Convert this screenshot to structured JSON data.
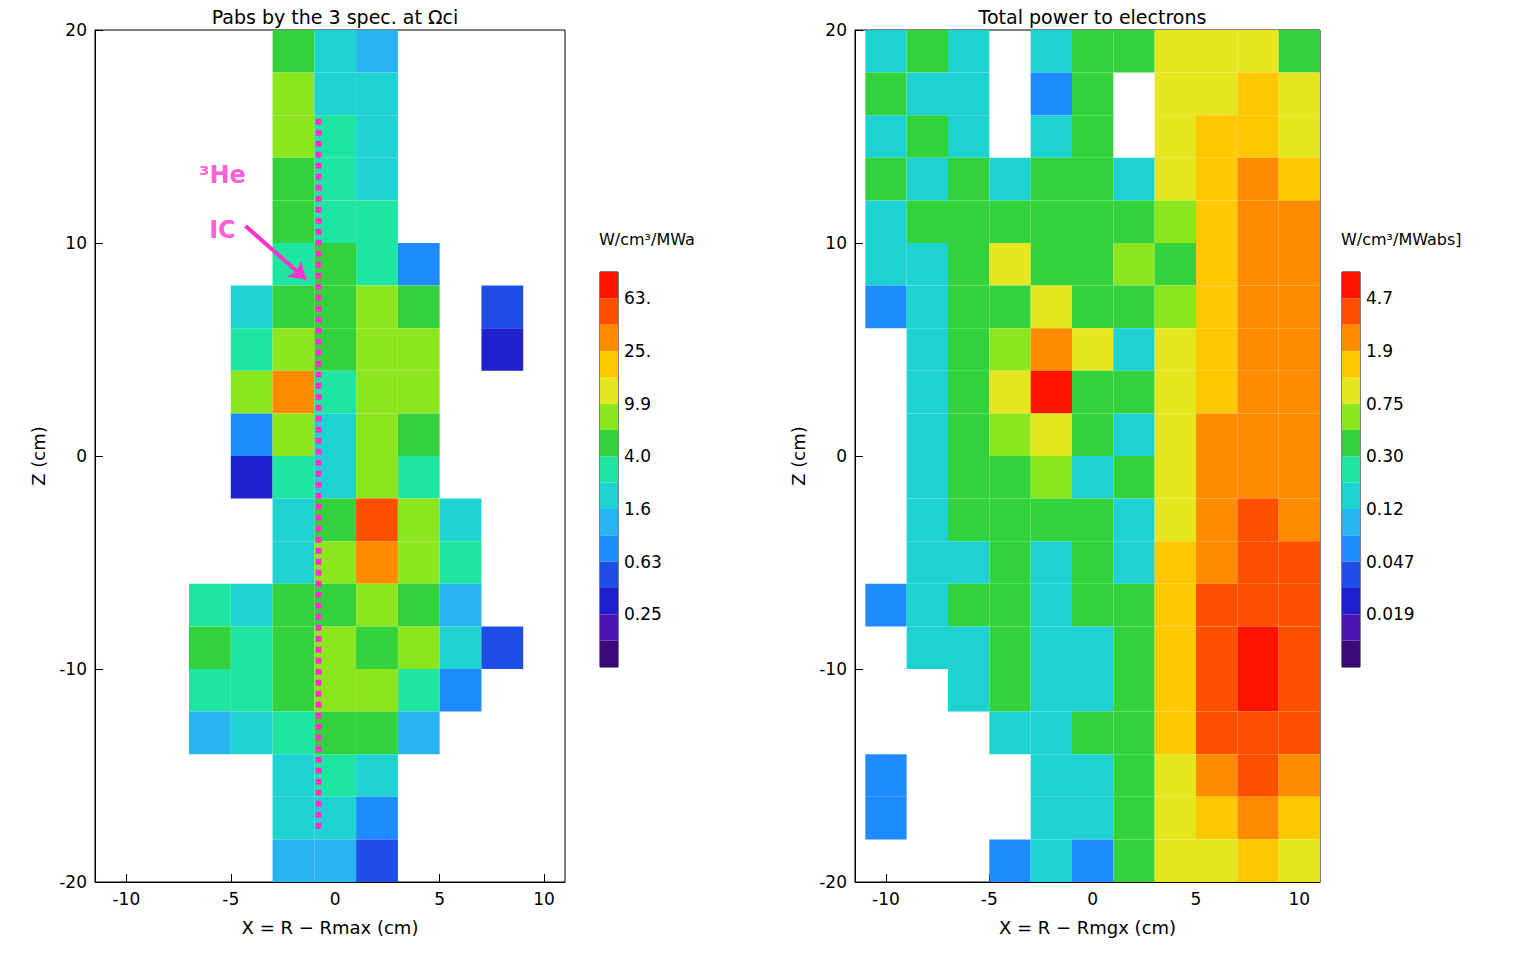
{
  "chart_data": [
    {
      "type": "heatmap",
      "title": "Pabs by the 3 spec. at Ωci",
      "xlabel": "X = R − Rmax (cm)",
      "ylabel": "Z (cm)",
      "xlim": [
        -11.5,
        11
      ],
      "ylim": [
        -20,
        20
      ],
      "xticks": [
        -10,
        -5,
        0,
        5,
        10
      ],
      "yticks": [
        -20,
        -10,
        0,
        10,
        20
      ],
      "cells": {
        "x": [
          -10,
          -8,
          -6,
          -4,
          -2,
          0,
          2,
          4,
          6,
          8,
          10
        ],
        "z": [
          19,
          17,
          15,
          13,
          11,
          9,
          7,
          5,
          3,
          1,
          -1,
          -3,
          -5,
          -7,
          -9,
          -11,
          -13,
          -15,
          -17,
          -19
        ],
        "values": [
          [
            null,
            null,
            null,
            null,
            4.0,
            1.6,
            1.0,
            null,
            null,
            null,
            null
          ],
          [
            null,
            null,
            null,
            null,
            6.3,
            1.6,
            1.6,
            null,
            null,
            null,
            null
          ],
          [
            null,
            null,
            null,
            null,
            6.3,
            2.5,
            1.6,
            null,
            null,
            null,
            null
          ],
          [
            null,
            null,
            null,
            null,
            4.0,
            2.5,
            1.6,
            null,
            null,
            null,
            null
          ],
          [
            null,
            null,
            null,
            null,
            4.0,
            2.5,
            2.5,
            null,
            null,
            null,
            null
          ],
          [
            null,
            null,
            null,
            null,
            2.5,
            4.0,
            2.5,
            0.63,
            null,
            null,
            null
          ],
          [
            null,
            null,
            null,
            1.6,
            4.0,
            4.0,
            6.3,
            4.0,
            null,
            0.4,
            null
          ],
          [
            null,
            null,
            null,
            2.5,
            6.3,
            4.0,
            6.3,
            6.3,
            null,
            0.25,
            null
          ],
          [
            null,
            null,
            null,
            6.3,
            25,
            2.5,
            6.3,
            6.3,
            null,
            null,
            null
          ],
          [
            null,
            null,
            null,
            0.63,
            6.3,
            1.6,
            6.3,
            4.0,
            null,
            null,
            null
          ],
          [
            null,
            null,
            null,
            0.25,
            2.5,
            1.6,
            6.3,
            2.5,
            null,
            null,
            null
          ],
          [
            null,
            null,
            null,
            null,
            1.6,
            4.0,
            40,
            6.3,
            1.6,
            null,
            null
          ],
          [
            null,
            null,
            null,
            null,
            1.6,
            6.3,
            25,
            6.3,
            2.5,
            null,
            null
          ],
          [
            null,
            null,
            2.5,
            1.6,
            4.0,
            4.0,
            6.3,
            4.0,
            1.0,
            null,
            null
          ],
          [
            null,
            null,
            4.0,
            2.5,
            4.0,
            6.3,
            4.0,
            6.3,
            1.6,
            0.4,
            null
          ],
          [
            null,
            null,
            2.5,
            2.5,
            4.0,
            6.3,
            6.3,
            2.5,
            0.63,
            null,
            null
          ],
          [
            null,
            null,
            1.0,
            1.6,
            2.5,
            4.0,
            4.0,
            1.0,
            null,
            null,
            null
          ],
          [
            null,
            null,
            null,
            null,
            1.6,
            2.5,
            1.6,
            null,
            null,
            null,
            null
          ],
          [
            null,
            null,
            null,
            null,
            1.6,
            1.6,
            0.63,
            null,
            null,
            null,
            null
          ],
          [
            null,
            null,
            null,
            null,
            1.0,
            1.0,
            0.4,
            null,
            null,
            null,
            null
          ]
        ]
      },
      "colorbar": {
        "title": "W/cm³/MWa",
        "bounds": [
          0.1,
          0.16,
          0.25,
          0.4,
          0.63,
          1.0,
          1.6,
          2.5,
          4.0,
          6.3,
          9.9,
          16,
          25,
          40,
          63,
          100
        ],
        "colors": [
          "#3c0a78",
          "#4b14b4",
          "#2020d0",
          "#1e4ee6",
          "#1e8cff",
          "#28b4f0",
          "#1ed2d2",
          "#1ee6a0",
          "#32d23c",
          "#8ce61e",
          "#e6e61e",
          "#ffc800",
          "#ff8c00",
          "#ff5000",
          "#ff1400"
        ],
        "ticks": [
          0.25,
          0.63,
          1.6,
          {
            "value": 4.0,
            "label": "4.0"
          },
          9.9,
          {
            "value": 25,
            "label": "25."
          },
          {
            "value": 63,
            "label": "63."
          }
        ]
      },
      "annotations": [
        {
          "text": "³He",
          "x": -5.4,
          "y": 13.2,
          "color": "#ff33cc"
        },
        {
          "text": "IC",
          "x": -5.4,
          "y": 10.6,
          "color": "#ff33cc"
        }
      ],
      "arrow": {
        "from": [
          -4.3,
          10.8
        ],
        "to": [
          -1.4,
          8.3
        ],
        "color": "#ff33cc"
      },
      "reference_line": {
        "x": -0.8,
        "z": [
          -17.5,
          16
        ],
        "color": "#ff33cc",
        "line_style": "dotted"
      }
    },
    {
      "type": "heatmap",
      "title": "Total power to electrons",
      "xlabel": "X = R − Rmgx (cm)",
      "ylabel": "Z (cm)",
      "xlim": [
        -11.5,
        11
      ],
      "ylim": [
        -20,
        20
      ],
      "xticks": [
        -10,
        -5,
        0,
        5,
        10
      ],
      "yticks": [
        -20,
        -10,
        0,
        10,
        20
      ],
      "cells": {
        "x": [
          -10,
          -8,
          -6,
          -4,
          -2,
          0,
          2,
          4,
          6,
          8,
          10
        ],
        "z": [
          19,
          17,
          15,
          13,
          11,
          9,
          7,
          5,
          3,
          1,
          -1,
          -3,
          -5,
          -7,
          -9,
          -11,
          -13,
          -15,
          -17,
          -19
        ],
        "values": [
          [
            0.12,
            0.3,
            0.12,
            null,
            0.12,
            0.3,
            0.3,
            0.75,
            0.75,
            0.75,
            0.3
          ],
          [
            0.3,
            0.12,
            0.12,
            null,
            0.047,
            0.3,
            null,
            0.75,
            0.75,
            1.2,
            0.75
          ],
          [
            0.12,
            0.3,
            0.12,
            null,
            0.12,
            0.3,
            null,
            0.75,
            1.2,
            1.2,
            0.75
          ],
          [
            0.3,
            0.12,
            0.3,
            0.12,
            0.3,
            0.3,
            0.12,
            0.75,
            1.2,
            1.9,
            1.2
          ],
          [
            0.12,
            0.3,
            0.3,
            0.3,
            0.3,
            0.3,
            0.3,
            0.47,
            1.2,
            1.9,
            1.9
          ],
          [
            0.12,
            0.12,
            0.3,
            0.75,
            0.3,
            0.3,
            0.47,
            0.3,
            1.2,
            1.9,
            1.9
          ],
          [
            0.047,
            0.12,
            0.3,
            0.3,
            0.75,
            0.3,
            0.3,
            0.47,
            1.2,
            1.9,
            1.9
          ],
          [
            null,
            0.12,
            0.3,
            0.47,
            1.9,
            0.75,
            0.12,
            0.75,
            1.2,
            1.9,
            1.9
          ],
          [
            null,
            0.12,
            0.3,
            0.75,
            4.7,
            0.3,
            0.3,
            0.75,
            1.2,
            1.9,
            1.9
          ],
          [
            null,
            0.12,
            0.3,
            0.47,
            0.75,
            0.3,
            0.12,
            0.75,
            1.9,
            1.9,
            1.9
          ],
          [
            null,
            0.12,
            0.3,
            0.3,
            0.47,
            0.12,
            0.3,
            0.75,
            1.9,
            1.9,
            1.9
          ],
          [
            null,
            0.12,
            0.3,
            0.3,
            0.3,
            0.3,
            0.12,
            0.75,
            1.9,
            3.0,
            1.9
          ],
          [
            null,
            0.12,
            0.12,
            0.3,
            0.12,
            0.3,
            0.12,
            1.2,
            1.9,
            3.0,
            3.0
          ],
          [
            0.047,
            0.12,
            0.3,
            0.3,
            0.12,
            0.3,
            0.3,
            1.2,
            3.0,
            3.0,
            3.0
          ],
          [
            null,
            0.12,
            0.12,
            0.3,
            0.12,
            0.12,
            0.3,
            1.2,
            3.0,
            4.7,
            3.0
          ],
          [
            null,
            null,
            0.12,
            0.3,
            0.12,
            0.12,
            0.3,
            1.2,
            3.0,
            4.7,
            3.0
          ],
          [
            null,
            null,
            null,
            0.12,
            0.12,
            0.3,
            0.3,
            1.2,
            3.0,
            3.0,
            3.0
          ],
          [
            0.047,
            null,
            null,
            null,
            0.12,
            0.12,
            0.3,
            0.75,
            1.9,
            3.0,
            1.9
          ],
          [
            0.047,
            null,
            null,
            null,
            0.12,
            0.12,
            0.3,
            0.75,
            1.2,
            1.9,
            1.2
          ],
          [
            null,
            null,
            null,
            0.047,
            0.12,
            0.047,
            0.3,
            0.75,
            0.75,
            1.2,
            0.75
          ]
        ]
      },
      "colorbar": {
        "title": "W/cm³/MWabs]",
        "bounds": [
          0.0076,
          0.012,
          0.019,
          0.03,
          0.047,
          0.075,
          0.12,
          0.19,
          0.3,
          0.47,
          0.75,
          1.2,
          1.9,
          3.0,
          4.7,
          7.5
        ],
        "colors": [
          "#3c0a78",
          "#4b14b4",
          "#2020d0",
          "#1e4ee6",
          "#1e8cff",
          "#28b4f0",
          "#1ed2d2",
          "#1ee6a0",
          "#32d23c",
          "#8ce61e",
          "#e6e61e",
          "#ffc800",
          "#ff8c00",
          "#ff5000",
          "#ff1400"
        ],
        "ticks": [
          0.019,
          0.047,
          0.12,
          {
            "value": 0.3,
            "label": "0.30"
          },
          0.75,
          1.9,
          4.7
        ]
      }
    }
  ]
}
